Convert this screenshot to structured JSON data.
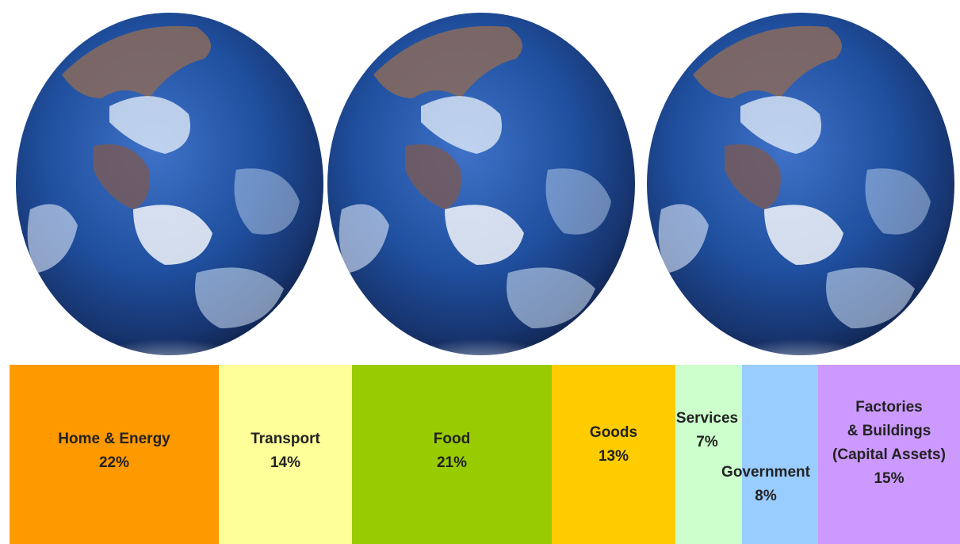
{
  "chart_data": {
    "type": "bar",
    "categories": [
      "Home & Energy",
      "Transport",
      "Food",
      "Goods",
      "Services",
      "Government",
      "Factories & Buildings (Capital Assets)"
    ],
    "values": [
      22,
      14,
      21,
      13,
      7,
      8,
      15
    ],
    "unit": "%",
    "segments": [
      {
        "label_lines": [
          "Home & Energy"
        ],
        "value_text": "22%",
        "value": 22,
        "color": "#FF9900"
      },
      {
        "label_lines": [
          "Transport"
        ],
        "value_text": "14%",
        "value": 14,
        "color": "#FFFF99"
      },
      {
        "label_lines": [
          "Food"
        ],
        "value_text": "21%",
        "value": 21,
        "color": "#99CC00"
      },
      {
        "label_lines": [
          "Goods"
        ],
        "value_text": "13%",
        "value": 13,
        "color": "#FFCC00"
      },
      {
        "label_lines": [
          "Services"
        ],
        "value_text": "7%",
        "value": 7,
        "color": "#CCFFCC"
      },
      {
        "label_lines": [
          "Government"
        ],
        "value_text": "8%",
        "value": 8,
        "color": "#99CCFF"
      },
      {
        "label_lines": [
          "Factories",
          "& Buildings",
          "(Capital Assets)"
        ],
        "value_text": "15%",
        "value": 15,
        "color": "#CC99FF"
      }
    ]
  },
  "globes": [
    "earth-globe",
    "earth-globe",
    "earth-globe"
  ]
}
